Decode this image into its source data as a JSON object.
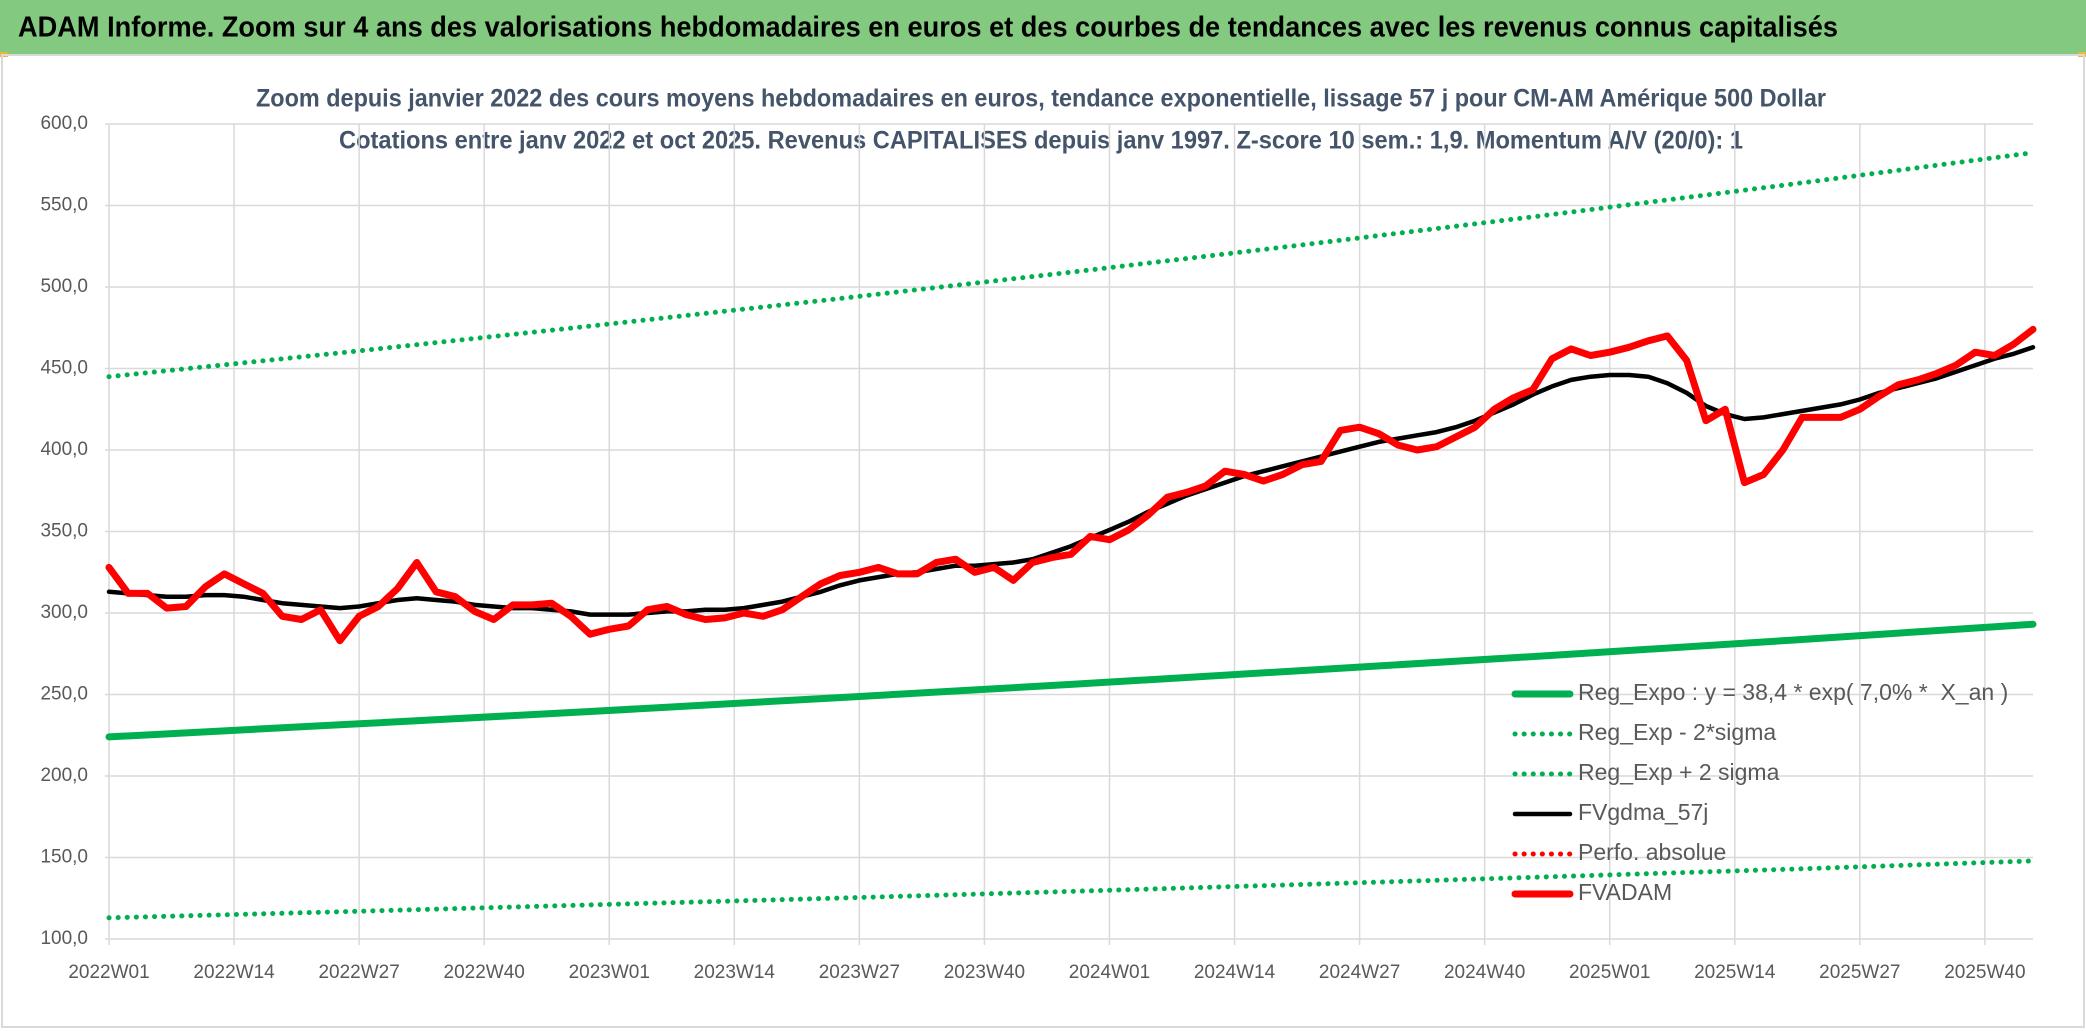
{
  "banner": "ADAM Informe. Zoom sur 4 ans des valorisations hebdomadaires en euros et des courbes de tendances avec les revenus connus capitalisés",
  "chart_data": {
    "type": "line",
    "title": "Zoom depuis janvier 2022 des cours moyens hebdomadaires en euros, tendance exponentielle, lissage 57 j pour CM-AM Amérique 500 Dollar",
    "subtitle": "Cotations entre janv 2022 et oct 2025. Revenus CAPITALISES depuis janv 1997. Z-score 10 sem.: 1,9. Momentum A/V (20/0): 1",
    "xlim": [
      0,
      200
    ],
    "ylim": [
      100,
      600
    ],
    "grid": true,
    "xticks": [
      {
        "value": 0,
        "label": "2022W01"
      },
      {
        "value": 13,
        "label": "2022W14"
      },
      {
        "value": 26,
        "label": "2022W27"
      },
      {
        "value": 39,
        "label": "2022W40"
      },
      {
        "value": 52,
        "label": "2023W01"
      },
      {
        "value": 65,
        "label": "2023W14"
      },
      {
        "value": 78,
        "label": "2023W27"
      },
      {
        "value": 91,
        "label": "2023W40"
      },
      {
        "value": 104,
        "label": "2024W01"
      },
      {
        "value": 117,
        "label": "2024W14"
      },
      {
        "value": 130,
        "label": "2024W27"
      },
      {
        "value": 143,
        "label": "2024W40"
      },
      {
        "value": 156,
        "label": "2025W01"
      },
      {
        "value": 169,
        "label": "2025W14"
      },
      {
        "value": 182,
        "label": "2025W27"
      },
      {
        "value": 195,
        "label": "2025W40"
      }
    ],
    "yticks": [
      {
        "value": 100,
        "label": "100,0"
      },
      {
        "value": 150,
        "label": "150,0"
      },
      {
        "value": 200,
        "label": "200,0"
      },
      {
        "value": 250,
        "label": "250,0"
      },
      {
        "value": 300,
        "label": "300,0"
      },
      {
        "value": 350,
        "label": "350,0"
      },
      {
        "value": 400,
        "label": "400,0"
      },
      {
        "value": 450,
        "label": "450,0"
      },
      {
        "value": 500,
        "label": "500,0"
      },
      {
        "value": 550,
        "label": "550,0"
      },
      {
        "value": 600,
        "label": "600,0"
      }
    ],
    "series": [
      {
        "name": "Reg_Expo : y = 38,4 * exp( 7,0% *  X_an )",
        "color": "#00b050",
        "line_style": "thick",
        "x": [
          0,
          25,
          50,
          75,
          100,
          125,
          150,
          175,
          200
        ],
        "values": [
          224.0,
          231.7,
          239.6,
          247.8,
          256.2,
          265.0,
          274.0,
          283.4,
          293.1
        ]
      },
      {
        "name": "Reg_Exp - 2*sigma",
        "color": "#00b050",
        "line_style": "dotted",
        "x": [
          0,
          25,
          50,
          75,
          100,
          125,
          150,
          175,
          200
        ],
        "values": [
          113.0,
          116.9,
          120.9,
          125.0,
          129.2,
          133.6,
          138.2,
          142.9,
          147.9
        ]
      },
      {
        "name": "Reg_Exp + 2 sigma",
        "color": "#00b050",
        "line_style": "dotted",
        "x": [
          0,
          25,
          50,
          75,
          100,
          125,
          150,
          175,
          200
        ],
        "values": [
          445.0,
          460.2,
          476.0,
          492.3,
          509.1,
          526.5,
          544.5,
          563.1,
          582.4
        ]
      },
      {
        "name": "FVgdma_57j",
        "color": "#000000",
        "line_style": "solid",
        "x": [
          0,
          2,
          4,
          6,
          8,
          10,
          12,
          14,
          16,
          18,
          20,
          22,
          24,
          26,
          28,
          30,
          32,
          34,
          36,
          38,
          40,
          42,
          44,
          46,
          48,
          50,
          52,
          54,
          56,
          58,
          60,
          62,
          64,
          66,
          68,
          70,
          72,
          74,
          76,
          78,
          80,
          82,
          84,
          86,
          88,
          90,
          92,
          94,
          96,
          98,
          100,
          102,
          104,
          106,
          108,
          110,
          112,
          114,
          116,
          118,
          120,
          122,
          124,
          126,
          128,
          130,
          132,
          134,
          136,
          138,
          140,
          142,
          144,
          146,
          148,
          150,
          152,
          154,
          156,
          158,
          160,
          162,
          164,
          166,
          168,
          170,
          172,
          174,
          176,
          178,
          180,
          182,
          184,
          186,
          188,
          190,
          192,
          194,
          196,
          198,
          200
        ],
        "values": [
          313,
          312,
          311,
          310,
          310,
          311,
          311,
          310,
          308,
          306,
          305,
          304,
          303,
          304,
          306,
          308,
          309,
          308,
          307,
          305,
          304,
          303,
          303,
          302,
          301,
          299,
          299,
          299,
          300,
          301,
          301,
          302,
          302,
          303,
          305,
          307,
          310,
          313,
          317,
          320,
          322,
          324,
          325,
          327,
          329,
          329,
          330,
          331,
          333,
          337,
          341,
          346,
          351,
          356,
          362,
          367,
          372,
          376,
          380,
          384,
          387,
          390,
          393,
          396,
          399,
          402,
          405,
          407,
          409,
          411,
          414,
          418,
          423,
          428,
          434,
          439,
          443,
          445,
          446,
          446,
          445,
          441,
          435,
          427,
          422,
          419,
          420,
          422,
          424,
          426,
          428,
          431,
          435,
          438,
          441,
          444,
          448,
          452,
          456,
          459,
          463
        ]
      },
      {
        "name": "Perfo. absolue",
        "color": "#ff0000",
        "line_style": "dotted",
        "x": [],
        "values": []
      },
      {
        "name": "FVADAM",
        "color": "#ff0000",
        "line_style": "thick",
        "x": [
          0,
          2,
          4,
          6,
          8,
          10,
          12,
          14,
          16,
          18,
          20,
          22,
          24,
          26,
          28,
          30,
          32,
          34,
          36,
          38,
          40,
          42,
          44,
          46,
          48,
          50,
          52,
          54,
          56,
          58,
          60,
          62,
          64,
          66,
          68,
          70,
          72,
          74,
          76,
          78,
          80,
          82,
          84,
          86,
          88,
          90,
          92,
          94,
          96,
          98,
          100,
          102,
          104,
          106,
          108,
          110,
          112,
          114,
          116,
          118,
          120,
          122,
          124,
          126,
          128,
          130,
          132,
          134,
          136,
          138,
          140,
          142,
          144,
          146,
          148,
          150,
          152,
          154,
          156,
          158,
          160,
          162,
          164,
          166,
          168,
          170,
          172,
          174,
          176,
          178,
          180,
          182,
          184,
          186,
          188,
          190,
          192,
          194,
          196,
          198,
          200
        ],
        "values": [
          328,
          312,
          312,
          303,
          304,
          316,
          324,
          318,
          312,
          298,
          296,
          302,
          283,
          298,
          304,
          315,
          331,
          313,
          310,
          301,
          296,
          305,
          305,
          306,
          298,
          287,
          290,
          292,
          302,
          304,
          299,
          296,
          297,
          300,
          298,
          302,
          310,
          318,
          323,
          325,
          328,
          324,
          324,
          331,
          333,
          325,
          328,
          320,
          331,
          334,
          336,
          347,
          345,
          351,
          360,
          371,
          374,
          378,
          387,
          385,
          381,
          385,
          391,
          393,
          412,
          414,
          410,
          403,
          400,
          402,
          408,
          414,
          425,
          432,
          437,
          456,
          462,
          458,
          460,
          463,
          467,
          470,
          455,
          418,
          425,
          380,
          385,
          400,
          420,
          420,
          420,
          425,
          433,
          440,
          443,
          447,
          452,
          460,
          458,
          465,
          474
        ]
      }
    ]
  }
}
